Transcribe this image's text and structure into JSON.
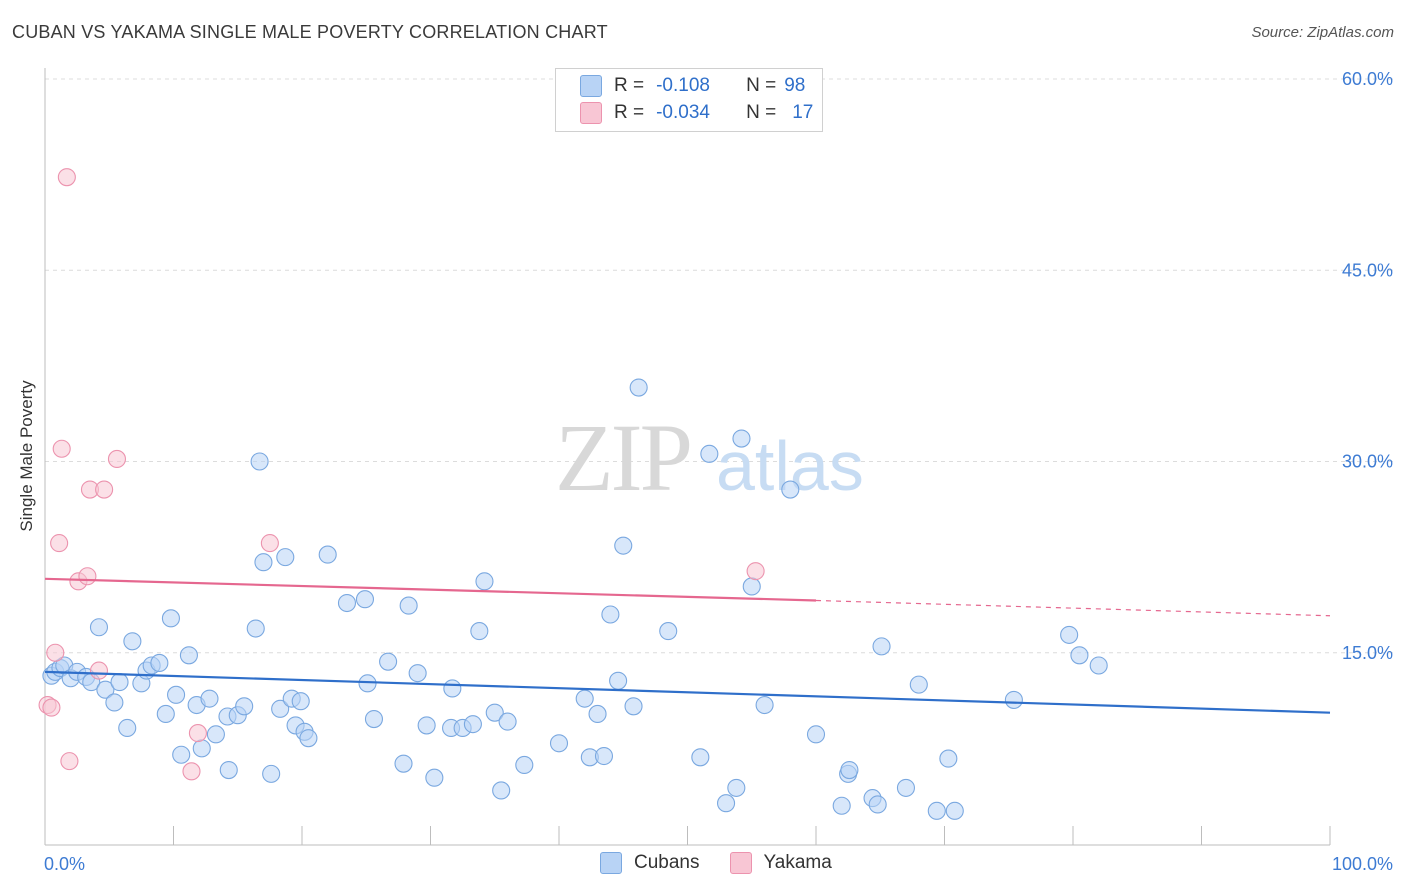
{
  "title": "CUBAN VS YAKAMA SINGLE MALE POVERTY CORRELATION CHART",
  "source": "Source: ZipAtlas.com",
  "watermark": {
    "zip": "ZIP",
    "atlas": "atlas"
  },
  "colors": {
    "cubans_fill": "#b8d3f5",
    "cubans_stroke": "#7aa8e0",
    "cubans_line": "#2f6fca",
    "yakama_fill": "#f8c6d4",
    "yakama_stroke": "#ec93ae",
    "yakama_line": "#e5678f",
    "axis_text": "#3d7bd3"
  },
  "legend": {
    "rows": [
      {
        "r_label": "R =",
        "r_value": "-0.108",
        "n_label": "N =",
        "n_value": "98"
      },
      {
        "r_label": "R =",
        "r_value": "-0.034",
        "n_label": "N =",
        "n_value": "17"
      }
    ]
  },
  "bottom_legend": [
    "Cubans",
    "Yakama"
  ],
  "chart_data": {
    "type": "scatter",
    "ylabel": "Single Male Poverty",
    "xlim": [
      0,
      100
    ],
    "ylim": [
      0,
      60
    ],
    "x_tick_labels": [
      "0.0%",
      "100.0%"
    ],
    "y_ticks": [
      15,
      30,
      45,
      60
    ],
    "y_tick_labels": [
      "15.0%",
      "30.0%",
      "45.0%",
      "60.0%"
    ],
    "grid": "horizontal dashed",
    "series": [
      {
        "name": "Cubans",
        "trend": {
          "x": [
            0,
            100
          ],
          "y": [
            13.5,
            10.3
          ]
        },
        "points": [
          [
            0.5,
            13.2
          ],
          [
            0.8,
            13.5
          ],
          [
            1.2,
            13.8
          ],
          [
            1.5,
            14.0
          ],
          [
            2.0,
            13.0
          ],
          [
            2.5,
            13.5
          ],
          [
            3.2,
            13.1
          ],
          [
            3.6,
            12.7
          ],
          [
            4.2,
            17.0
          ],
          [
            4.7,
            12.1
          ],
          [
            5.4,
            11.1
          ],
          [
            5.8,
            12.7
          ],
          [
            6.4,
            9.1
          ],
          [
            6.8,
            15.9
          ],
          [
            7.5,
            12.6
          ],
          [
            7.9,
            13.6
          ],
          [
            8.3,
            14.0
          ],
          [
            8.9,
            14.2
          ],
          [
            9.4,
            10.2
          ],
          [
            9.8,
            17.7
          ],
          [
            10.2,
            11.7
          ],
          [
            10.6,
            7.0
          ],
          [
            11.2,
            14.8
          ],
          [
            11.8,
            10.9
          ],
          [
            12.2,
            7.5
          ],
          [
            12.8,
            11.4
          ],
          [
            13.3,
            8.6
          ],
          [
            14.2,
            10.0
          ],
          [
            14.3,
            5.8
          ],
          [
            15.0,
            10.1
          ],
          [
            15.5,
            10.8
          ],
          [
            16.4,
            16.9
          ],
          [
            16.7,
            30.0
          ],
          [
            17.0,
            22.1
          ],
          [
            17.6,
            5.5
          ],
          [
            18.3,
            10.6
          ],
          [
            18.7,
            22.5
          ],
          [
            19.2,
            11.4
          ],
          [
            19.5,
            9.3
          ],
          [
            19.9,
            11.2
          ],
          [
            20.2,
            8.8
          ],
          [
            20.5,
            8.3
          ],
          [
            22.0,
            22.7
          ],
          [
            23.5,
            18.9
          ],
          [
            24.9,
            19.2
          ],
          [
            25.1,
            12.6
          ],
          [
            25.6,
            9.8
          ],
          [
            26.7,
            14.3
          ],
          [
            27.9,
            6.3
          ],
          [
            28.3,
            18.7
          ],
          [
            29.0,
            13.4
          ],
          [
            29.7,
            9.3
          ],
          [
            30.3,
            5.2
          ],
          [
            31.6,
            9.1
          ],
          [
            31.7,
            12.2
          ],
          [
            32.5,
            9.1
          ],
          [
            33.3,
            9.4
          ],
          [
            33.8,
            16.7
          ],
          [
            34.2,
            20.6
          ],
          [
            35.0,
            10.3
          ],
          [
            35.5,
            4.2
          ],
          [
            36.0,
            9.6
          ],
          [
            37.3,
            6.2
          ],
          [
            40.0,
            7.9
          ],
          [
            42.0,
            11.4
          ],
          [
            42.4,
            6.8
          ],
          [
            43.0,
            10.2
          ],
          [
            43.5,
            6.9
          ],
          [
            44.0,
            18.0
          ],
          [
            44.6,
            12.8
          ],
          [
            45.0,
            23.4
          ],
          [
            45.8,
            10.8
          ],
          [
            46.2,
            35.8
          ],
          [
            48.5,
            16.7
          ],
          [
            51.0,
            6.8
          ],
          [
            51.7,
            30.6
          ],
          [
            53.0,
            3.2
          ],
          [
            53.8,
            4.4
          ],
          [
            54.2,
            31.8
          ],
          [
            55.0,
            20.2
          ],
          [
            56.0,
            10.9
          ],
          [
            58.0,
            27.8
          ],
          [
            60.0,
            8.6
          ],
          [
            62.0,
            3.0
          ],
          [
            62.5,
            5.5
          ],
          [
            62.6,
            5.8
          ],
          [
            64.4,
            3.6
          ],
          [
            64.8,
            3.1
          ],
          [
            65.1,
            15.5
          ],
          [
            67.0,
            4.4
          ],
          [
            68.0,
            12.5
          ],
          [
            69.4,
            2.6
          ],
          [
            70.3,
            6.7
          ],
          [
            70.8,
            2.6
          ],
          [
            75.4,
            11.3
          ],
          [
            79.7,
            16.4
          ],
          [
            80.5,
            14.8
          ],
          [
            82.0,
            14.0
          ]
        ]
      },
      {
        "name": "Yakama",
        "trend": {
          "x": [
            0,
            60
          ],
          "y": [
            20.8,
            19.1
          ]
        },
        "trend_dashed": {
          "x": [
            60,
            100
          ],
          "y": [
            19.1,
            17.9
          ]
        },
        "points": [
          [
            0.2,
            10.9
          ],
          [
            0.5,
            10.7
          ],
          [
            0.8,
            15.0
          ],
          [
            1.1,
            23.6
          ],
          [
            1.3,
            31.0
          ],
          [
            1.7,
            52.3
          ],
          [
            1.9,
            6.5
          ],
          [
            2.6,
            20.6
          ],
          [
            3.3,
            21.0
          ],
          [
            3.5,
            27.8
          ],
          [
            4.2,
            13.6
          ],
          [
            4.6,
            27.8
          ],
          [
            5.6,
            30.2
          ],
          [
            11.4,
            5.7
          ],
          [
            11.9,
            8.7
          ],
          [
            17.5,
            23.6
          ],
          [
            55.3,
            21.4
          ]
        ]
      }
    ]
  }
}
